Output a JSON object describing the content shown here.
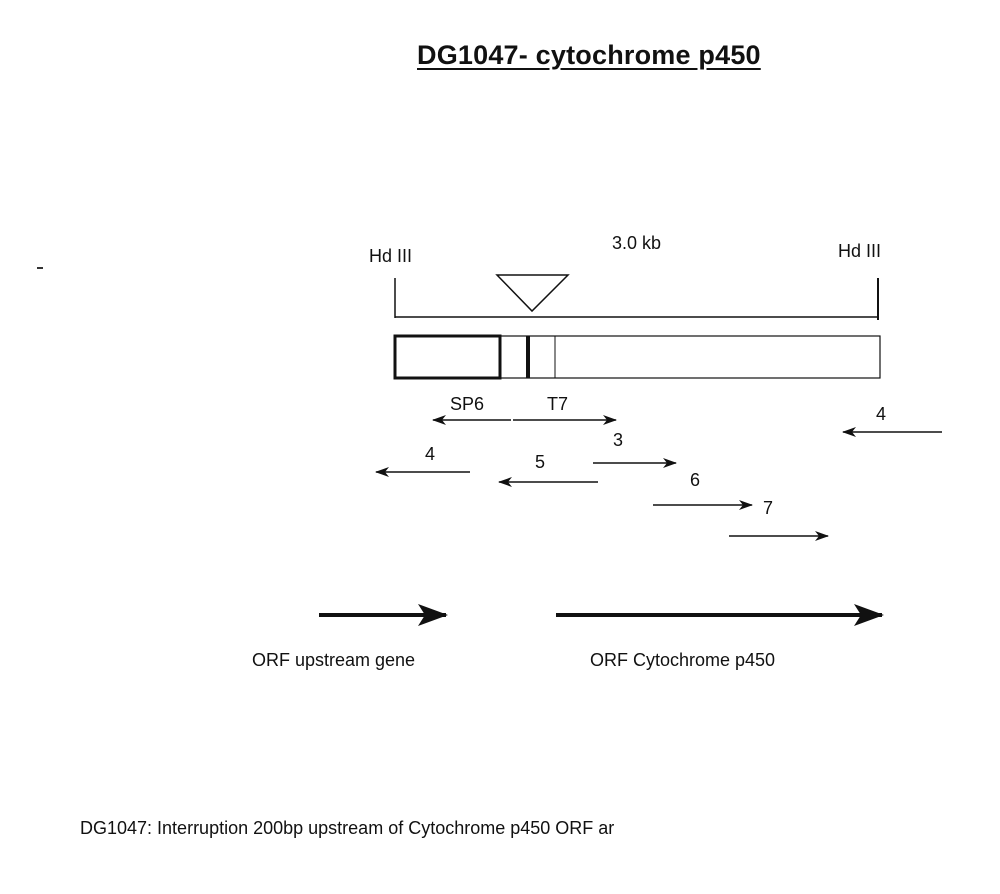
{
  "title": "DG1047- cytochrome p450",
  "map": {
    "site_left": "Hd III",
    "site_right": "Hd III",
    "length": "3.0  kb",
    "promoter_sp6": "SP6",
    "promoter_t7": "T7"
  },
  "reads": [
    "3",
    "4",
    "4",
    "5",
    "6",
    "7"
  ],
  "orfs": {
    "upstream": "ORF upstream gene",
    "cytochrome": "ORF Cytochrome p450"
  },
  "caption": "DG1047:  Interruption 200bp upstream of Cytochrome p450 ORF ar"
}
